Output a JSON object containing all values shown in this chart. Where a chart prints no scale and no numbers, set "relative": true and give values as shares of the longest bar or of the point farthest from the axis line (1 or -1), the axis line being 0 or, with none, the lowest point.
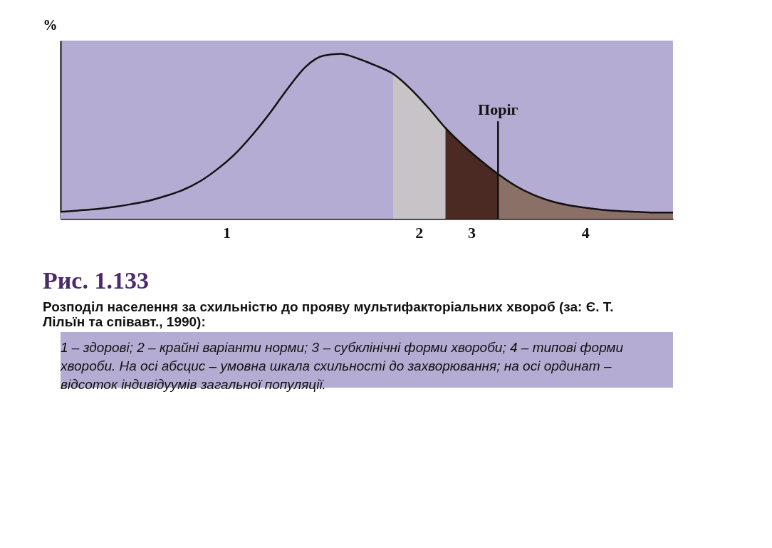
{
  "chart_data": {
    "type": "area",
    "relative": true,
    "title": "Рис. 1.133",
    "subtitle": "Розподіл населення за схильністю до прояву мультифакторіальних хвороб (за: Є. Т. Лільїн та співавт., 1990):",
    "ylabel": "%",
    "legend": false,
    "grid": false,
    "tick_labels": false,
    "categories": [
      null,
      null,
      null,
      null,
      null,
      null,
      null,
      null,
      null,
      null,
      null,
      null,
      null,
      null,
      null,
      null,
      null,
      null,
      null,
      null,
      null,
      null,
      null,
      null,
      null,
      null,
      null,
      null,
      null,
      null,
      null,
      null,
      null,
      null,
      null,
      null
    ],
    "series": [
      {
        "name": "1",
        "color": "#b4acd2",
        "values": [
          0.042,
          0.05,
          0.058,
          0.071,
          0.088,
          0.108,
          0.138,
          0.175,
          0.229,
          0.304,
          0.396,
          0.513,
          0.646,
          0.792,
          0.921,
          0.988,
          1.0,
          0.971,
          0.929,
          0.879,
          null,
          null,
          null,
          null,
          null,
          null,
          null,
          null,
          null,
          null,
          null,
          null,
          null,
          null,
          null,
          null
        ]
      },
      {
        "name": "2",
        "color": "#c8c3c6",
        "values": [
          null,
          null,
          null,
          null,
          null,
          null,
          null,
          null,
          null,
          null,
          null,
          null,
          null,
          null,
          null,
          null,
          null,
          null,
          null,
          0.879,
          0.788,
          0.675,
          0.55,
          null,
          null,
          null,
          null,
          null,
          null,
          null,
          null,
          null,
          null,
          null,
          null,
          null
        ]
      },
      {
        "name": "3",
        "color": "#4b2a24",
        "values": [
          null,
          null,
          null,
          null,
          null,
          null,
          null,
          null,
          null,
          null,
          null,
          null,
          null,
          null,
          null,
          null,
          null,
          null,
          null,
          null,
          null,
          null,
          0.55,
          0.446,
          0.354,
          0.271,
          null,
          null,
          null,
          null,
          null,
          null,
          null,
          null,
          null,
          null
        ]
      },
      {
        "name": "4",
        "color": "#8b7068",
        "values": [
          null,
          null,
          null,
          null,
          null,
          null,
          null,
          null,
          null,
          null,
          null,
          null,
          null,
          null,
          null,
          null,
          null,
          null,
          null,
          null,
          null,
          null,
          null,
          null,
          null,
          0.271,
          0.2,
          0.146,
          0.108,
          0.083,
          0.067,
          0.054,
          0.046,
          0.042,
          0.038,
          0.038
        ]
      },
      {
        "type": "line",
        "color": "#111111",
        "values": [
          0.042,
          0.05,
          0.058,
          0.071,
          0.088,
          0.108,
          0.138,
          0.175,
          0.229,
          0.304,
          0.396,
          0.513,
          0.646,
          0.792,
          0.921,
          0.988,
          1.0,
          0.971,
          0.929,
          0.879,
          0.788,
          0.675,
          0.55,
          0.446,
          0.354,
          0.271,
          0.2,
          0.146,
          0.108,
          0.083,
          0.067,
          0.054,
          0.046,
          0.042,
          0.038,
          0.038
        ]
      }
    ],
    "annotations": [
      "Поріг",
      "1 – здорові; 2 – крайні варіанти норми; 3 – субклінічні форми хвороби; 4 – типові форми хвороби. На осі абсцис – умовна шкала схильності до захворювання; на осі ординат – відсоток індивідуумів загальної популяції."
    ]
  }
}
